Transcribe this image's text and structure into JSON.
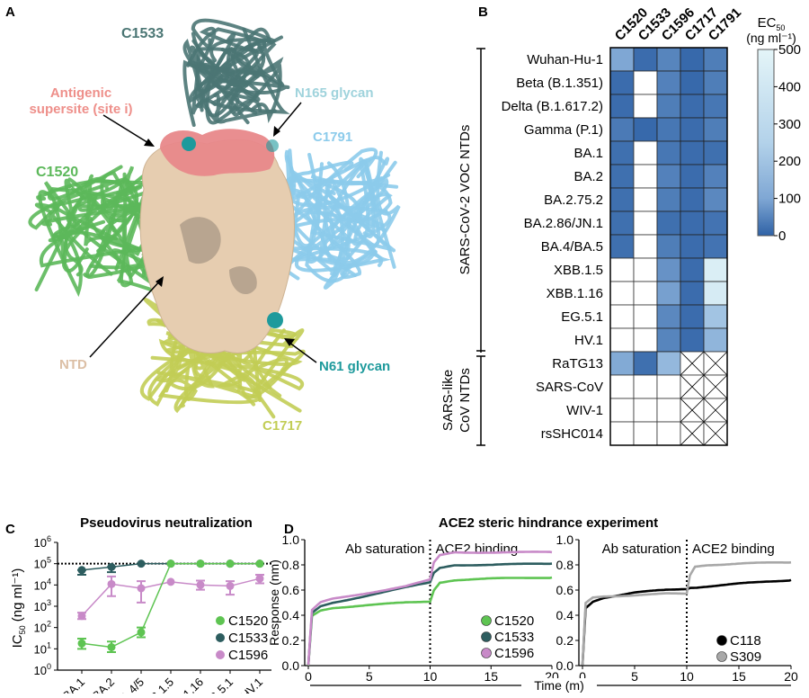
{
  "panels": {
    "a": {
      "letter": "A",
      "labels": {
        "c1533": "C1533",
        "supersite_line1": "Antigenic",
        "supersite_line2": "supersite (site i)",
        "n165": "N165 glycan",
        "c1791": "C1791",
        "c1520": "C1520",
        "ntd": "NTD",
        "n61": "N61 glycan",
        "c1717": "C1717"
      },
      "colors": {
        "c1533": "#4b7674",
        "c1520": "#5cb85a",
        "c1791": "#8ccbeb",
        "c1717": "#c2cd55",
        "ntd": "#e6cdb0",
        "supersite": "#e8888a",
        "glycan": "#1e9a9c",
        "n165_label": "#9fd3dc",
        "supersite_label": "#ee8f8a",
        "n61_label": "#1e9a9c"
      }
    },
    "b": {
      "letter": "B",
      "group_labels": {
        "voc": "SARS-CoV-2 VOC NTDs",
        "like_line1": "SARS-like",
        "like_line2": "CoV NTDs"
      },
      "colorbar": {
        "title": "EC",
        "title_sub": "50",
        "units": "(ng ml⁻¹)",
        "ticks": [
          "500",
          "400",
          "300",
          "200",
          "100",
          "0"
        ],
        "color_low": "#2f62a6",
        "color_high": "#e4f5f8"
      }
    },
    "c": {
      "letter": "C"
    },
    "d": {
      "letter": "D",
      "time_label": "Time (m)"
    }
  },
  "chart_data": [
    {
      "type": "heatmap",
      "columns": [
        "C1520",
        "C1533",
        "C1596",
        "C1717",
        "C1791"
      ],
      "rows": [
        "Wuhan-Hu-1",
        "Beta (B.1.351)",
        "Delta (B.1.617.2)",
        "Gamma (P.1)",
        "BA.1",
        "BA.2",
        "BA.2.75.2",
        "BA.2.86/JN.1",
        "BA.4/BA.5",
        "XBB.1.5",
        "XBB.1.16",
        "EG.5.1",
        "HV.1",
        "RaTG13",
        "SARS-CoV",
        "WIV-1",
        "rsSHC014"
      ],
      "values_note_legend": "white = no binding, crossed = not tested",
      "values": [
        [
          100,
          15,
          50,
          10,
          40
        ],
        [
          15,
          null,
          45,
          10,
          40
        ],
        [
          15,
          null,
          40,
          15,
          30
        ],
        [
          35,
          10,
          30,
          15,
          40
        ],
        [
          20,
          null,
          30,
          15,
          20
        ],
        [
          20,
          null,
          45,
          15,
          45
        ],
        [
          20,
          null,
          40,
          15,
          55
        ],
        [
          20,
          null,
          20,
          15,
          25
        ],
        [
          20,
          null,
          40,
          15,
          25
        ],
        [
          null,
          null,
          70,
          15,
          450
        ],
        [
          null,
          null,
          90,
          15,
          430
        ],
        [
          null,
          null,
          55,
          15,
          200
        ],
        [
          null,
          null,
          50,
          15,
          150
        ],
        [
          110,
          20,
          160,
          "x",
          "x"
        ],
        [
          null,
          null,
          null,
          "x",
          "x"
        ],
        [
          null,
          null,
          null,
          "x",
          "x"
        ],
        [
          null,
          null,
          null,
          "x",
          "x"
        ]
      ],
      "zlim": [
        0,
        500
      ]
    },
    {
      "type": "line",
      "title": "Pseudovirus neutralization",
      "ylabel": "IC",
      "ylabel_sub": "50",
      "ylabel_units": " (ng ml⁻¹)",
      "yscale": "log",
      "ylim": [
        1,
        1000000
      ],
      "ytick_labels": [
        {
          "b": "10",
          "e": "0"
        },
        {
          "b": "10",
          "e": "1"
        },
        {
          "b": "10",
          "e": "2"
        },
        {
          "b": "10",
          "e": "3"
        },
        {
          "b": "10",
          "e": "4"
        },
        {
          "b": "10",
          "e": "5"
        },
        {
          "b": "10",
          "e": "6"
        }
      ],
      "categories": [
        "BA.1",
        "BA.2",
        "BA.4/5",
        "XBB.1.5",
        "XBB.1.16",
        "EG.5.1",
        "HV.1"
      ],
      "reference_line": 100000,
      "legend": "bottom-right",
      "series": [
        {
          "name": "C1520",
          "color": "#5ec452",
          "values": [
            18,
            12,
            60,
            100000,
            100000,
            100000,
            100000
          ],
          "err_lo": [
            10,
            7,
            35,
            null,
            null,
            null,
            null
          ],
          "err_hi": [
            30,
            22,
            100,
            null,
            null,
            null,
            null
          ]
        },
        {
          "name": "C1533",
          "color": "#2d5d5f",
          "values": [
            50000,
            70000,
            100000,
            100000,
            100000,
            100000,
            100000
          ],
          "err_lo": [
            30000,
            40000,
            null,
            null,
            null,
            null,
            null
          ],
          "err_hi": [
            null,
            null,
            null,
            null,
            null,
            null,
            null
          ]
        },
        {
          "name": "C1596",
          "color": "#c88ac8",
          "values": [
            350,
            11000,
            7000,
            14000,
            10000,
            9000,
            20000
          ],
          "err_lo": [
            250,
            3000,
            1500,
            null,
            6000,
            3500,
            12000
          ],
          "err_hi": [
            500,
            25000,
            15000,
            null,
            16000,
            15000,
            30000
          ]
        }
      ]
    },
    {
      "type": "line",
      "title": "ACE2 steric hindrance experiment",
      "ylabel": "Response (nm)",
      "ylim": [
        0,
        1.0
      ],
      "xlim": [
        0,
        20
      ],
      "yticks": [
        "0.0",
        "0.2",
        "0.4",
        "0.6",
        "0.8",
        "1.0"
      ],
      "xticks": [
        "0",
        "5",
        "10",
        "15",
        "20"
      ],
      "annotations": [
        "Ab saturation",
        "ACE2 binding"
      ],
      "vline": 10,
      "legend": "bottom-right",
      "x": [
        0,
        0.3,
        1,
        2,
        5,
        8,
        10,
        10.3,
        10.8,
        12,
        15,
        20
      ],
      "series": [
        {
          "name": "C1520",
          "color": "#5ec452",
          "values": [
            0,
            0.4,
            0.44,
            0.46,
            0.48,
            0.5,
            0.51,
            0.6,
            0.66,
            0.68,
            0.69,
            0.7
          ]
        },
        {
          "name": "C1533",
          "color": "#2d5d5f",
          "values": [
            0,
            0.42,
            0.47,
            0.5,
            0.56,
            0.62,
            0.66,
            0.74,
            0.78,
            0.8,
            0.8,
            0.81
          ]
        },
        {
          "name": "C1596",
          "color": "#c88ac8",
          "values": [
            0,
            0.44,
            0.5,
            0.53,
            0.58,
            0.63,
            0.68,
            0.82,
            0.88,
            0.9,
            0.9,
            0.9
          ]
        }
      ]
    },
    {
      "type": "line",
      "ylim": [
        0,
        1.0
      ],
      "xlim": [
        0,
        20
      ],
      "yticks": [
        "0.0",
        "0.2",
        "0.4",
        "0.6",
        "0.8",
        "1.0"
      ],
      "xticks": [
        "0",
        "5",
        "10",
        "15",
        "20"
      ],
      "annotations": [
        "Ab saturation",
        "ACE2 binding"
      ],
      "vline": 10,
      "legend": "bottom-right",
      "x": [
        0,
        0.3,
        1,
        2,
        5,
        8,
        10,
        10.3,
        10.8,
        12,
        15,
        20
      ],
      "series": [
        {
          "name": "C118",
          "color": "#000000",
          "values": [
            0,
            0.46,
            0.51,
            0.54,
            0.58,
            0.6,
            0.61,
            0.62,
            0.62,
            0.63,
            0.65,
            0.68
          ]
        },
        {
          "name": "S309",
          "color": "#a8a8a8",
          "values": [
            0,
            0.5,
            0.54,
            0.55,
            0.56,
            0.57,
            0.57,
            0.72,
            0.79,
            0.8,
            0.81,
            0.82
          ]
        }
      ]
    }
  ]
}
